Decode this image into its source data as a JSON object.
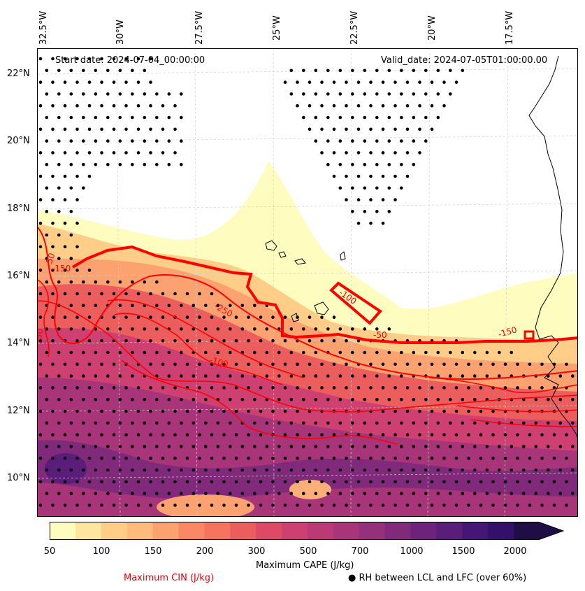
{
  "map": {
    "start_date": "Start date: 2024-07-04_00:00:00",
    "valid_date": "Valid_date: 2024-07-05T01:00:00.00",
    "lon_labels": [
      "32.5°W",
      "30°W",
      "27.5°W",
      "25°W",
      "22.5°W",
      "20°W",
      "17.5°W"
    ],
    "lat_labels": [
      "22°N",
      "20°N",
      "18°N",
      "16°N",
      "14°N",
      "12°N",
      "10°N"
    ],
    "contour_labels": [
      "-50",
      "-250",
      "-100",
      "-50",
      "-150",
      "-100",
      "-50",
      "-150"
    ],
    "contour_color": "#ff0000",
    "coast_color": "#000000"
  },
  "colorbar": {
    "ticks": [
      "50",
      "100",
      "150",
      "200",
      "300",
      "500",
      "700",
      "1000",
      "1500",
      "2000"
    ],
    "colors": [
      "#fefdbf",
      "#fee5a0",
      "#fecd88",
      "#febb7c",
      "#fca170",
      "#fb8864",
      "#f6735d",
      "#ec5d5e",
      "#de4968",
      "#cd4071",
      "#bb3a76",
      "#a83579",
      "#95307b",
      "#812a7c",
      "#6d237c",
      "#5a1d7a",
      "#461677",
      "#33106a",
      "#1f0d45"
    ],
    "label": "Maximum CAPE (J/kg)"
  },
  "legend": {
    "cin": "Maximum CIN (J/kg)",
    "rh": "● RH between LCL and LFC (over 60%)"
  }
}
